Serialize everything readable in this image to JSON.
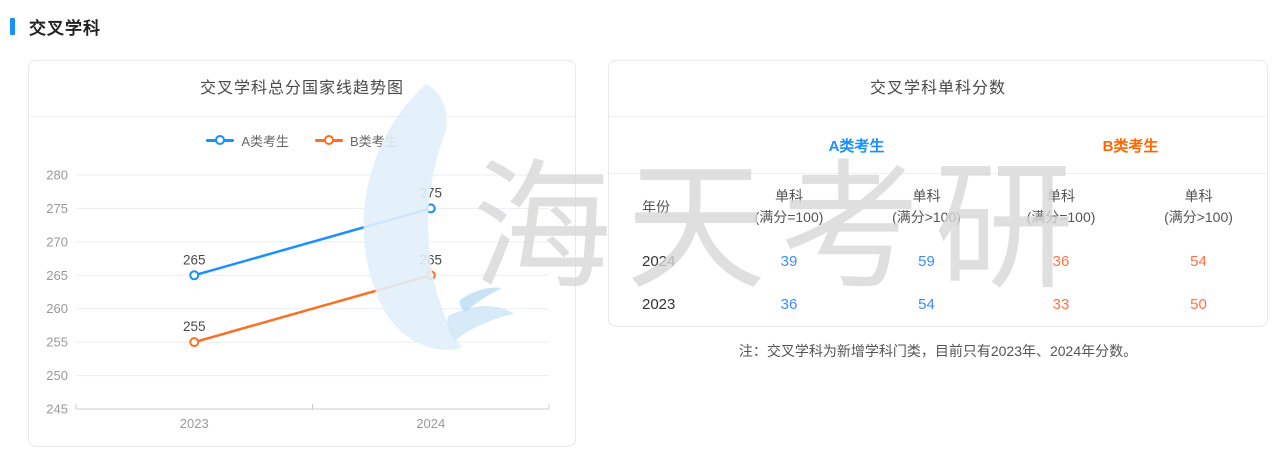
{
  "page": {
    "header": "交叉学科"
  },
  "colors": {
    "accent_blue": "#1890ff",
    "line_blue": "#1890ff",
    "line_orange": "#fc6e20",
    "group_header_blue": "#1890ff",
    "group_header_orange": "#ff6600",
    "value_blue": "#3d8cf8",
    "value_orange": "#ff7243",
    "grid_line": "#e9edf5",
    "axis_line": "#cccccc",
    "tick_label": "#999999",
    "point_label": "#4a4a4a",
    "watermark_gray": "#d8d8d8",
    "watermark_blue": "#ddedf9"
  },
  "chart_card": {
    "title": "交叉学科总分国家线趋势图"
  },
  "chart_data": [
    {
      "type": "line",
      "title": "交叉学科总分国家线趋势图",
      "categories": [
        "2023",
        "2024"
      ],
      "series": [
        {
          "name": "A类考生",
          "values": [
            265,
            275
          ],
          "color": "#1890ff"
        },
        {
          "name": "B类考生",
          "values": [
            255,
            265
          ],
          "color": "#fc6e20"
        }
      ],
      "ylim": [
        245,
        280
      ],
      "ytick_step": 5,
      "grid": true,
      "legend_position": "top",
      "point_labels": true
    },
    {
      "type": "table",
      "title": "交叉学科单科分数",
      "group_headers": [
        "A类考生",
        "B类考生"
      ],
      "columns": [
        "年份",
        "单科\n(满分=100)",
        "单科\n(满分>100)",
        "单科\n(满分=100)",
        "单科\n(满分>100)"
      ],
      "rows": [
        [
          "2024",
          "39",
          "59",
          "36",
          "54"
        ],
        [
          "2023",
          "36",
          "54",
          "33",
          "50"
        ]
      ],
      "note": "注：交叉学科为新增学科门类，目前只有2023年、2024年分数。"
    }
  ],
  "table_card": {
    "title": "交叉学科单科分数",
    "group_a": "A类考生",
    "group_b": "B类考生",
    "columns": [
      "年份",
      "单科\n(满分=100)",
      "单科\n(满分>100)",
      "单科\n(满分=100)",
      "单科\n(满分>100)"
    ],
    "rows": [
      {
        "year": "2024",
        "a1": "39",
        "a2": "59",
        "b1": "36",
        "b2": "54"
      },
      {
        "year": "2023",
        "a1": "36",
        "a2": "54",
        "b1": "33",
        "b2": "50"
      }
    ],
    "note": "注：交叉学科为新增学科门类，目前只有2023年、2024年分数。"
  },
  "watermark": {
    "text": "海天考研"
  }
}
